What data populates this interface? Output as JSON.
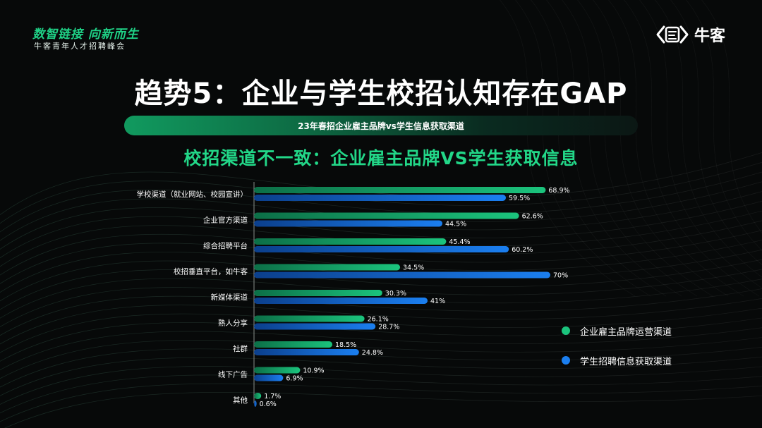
{
  "brand": {
    "slogan": "数智链接 向新而生",
    "event": "牛客青年人才招聘峰会",
    "logo_text": "牛客"
  },
  "title": "趋势5：企业与学生校招认知存在GAP",
  "banner": "23年春招企业雇主品牌vs学生信息获取渠道",
  "subtitle": "校招渠道不一致：企业雇主品牌VS学生获取信息",
  "colors": {
    "enterprise": "#1bc47d",
    "student": "#1b7ff0",
    "background": "#070909"
  },
  "chart_data": {
    "type": "bar",
    "orientation": "horizontal",
    "categories": [
      "学校渠道（就业网站、校园宣讲）",
      "企业官方渠道",
      "综合招聘平台",
      "校招垂直平台，如牛客",
      "新媒体渠道",
      "熟人分享",
      "社群",
      "线下广告",
      "其他"
    ],
    "series": [
      {
        "name": "企业雇主品牌运营渠道",
        "values": [
          68.9,
          62.6,
          45.4,
          34.5,
          30.3,
          26.1,
          18.5,
          10.9,
          1.7
        ],
        "labels": [
          "68.9%",
          "62.6%",
          "45.4%",
          "34.5%",
          "30.3%",
          "26.1%",
          "18.5%",
          "10.9%",
          "1.7%"
        ]
      },
      {
        "name": "学生招聘信息获取渠道",
        "values": [
          59.5,
          44.5,
          60.2,
          70,
          41,
          28.7,
          24.8,
          6.9,
          0.6
        ],
        "labels": [
          "59.5%",
          "44.5%",
          "60.2%",
          "70%",
          "41%",
          "28.7%",
          "24.8%",
          "6.9%",
          "0.6%"
        ]
      }
    ],
    "xlim": [
      0,
      100
    ],
    "grid": false,
    "legend_position": "right"
  }
}
